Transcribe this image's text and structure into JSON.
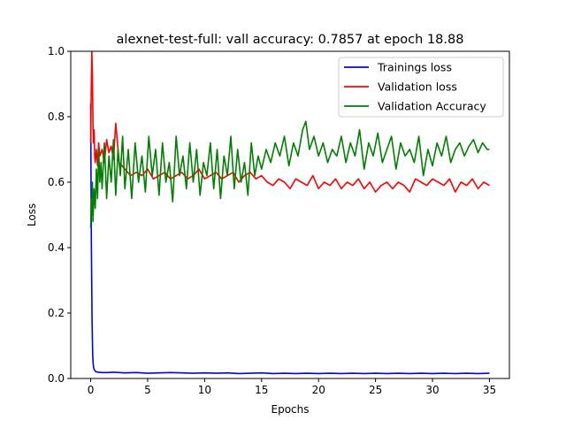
{
  "chart_data": {
    "type": "line",
    "title": "alexnet-test-full: vall accuracy: 0.7857 at epoch 18.88",
    "xlabel": "Epochs",
    "ylabel": "Loss",
    "xlim": [
      -1.75,
      36.75
    ],
    "ylim": [
      0.0,
      1.0
    ],
    "xticks": [
      0,
      5,
      10,
      15,
      20,
      25,
      30,
      35
    ],
    "yticks": [
      0.0,
      0.2,
      0.4,
      0.6,
      0.8,
      1.0
    ],
    "grid": false,
    "legend_position": "top-right",
    "series": [
      {
        "name": "Trainings loss",
        "color": "#0000ff",
        "x": [
          0.0,
          0.03,
          0.06,
          0.09,
          0.12,
          0.15,
          0.18,
          0.21,
          0.25,
          0.3,
          0.35,
          0.4,
          0.5,
          0.7,
          1,
          1.5,
          2,
          3,
          4,
          5,
          6,
          7,
          8,
          9,
          10,
          11,
          12,
          13,
          14,
          15,
          16,
          17,
          18,
          19,
          20,
          21,
          22,
          23,
          24,
          25,
          26,
          27,
          28,
          29,
          30,
          31,
          32,
          33,
          34,
          35
        ],
        "y": [
          0.84,
          0.6,
          0.42,
          0.3,
          0.18,
          0.12,
          0.07,
          0.05,
          0.035,
          0.028,
          0.025,
          0.022,
          0.02,
          0.019,
          0.018,
          0.018,
          0.019,
          0.017,
          0.018,
          0.016,
          0.017,
          0.018,
          0.017,
          0.016,
          0.017,
          0.016,
          0.017,
          0.015,
          0.016,
          0.017,
          0.015,
          0.016,
          0.015,
          0.016,
          0.015,
          0.016,
          0.015,
          0.016,
          0.015,
          0.016,
          0.015,
          0.016,
          0.015,
          0.016,
          0.015,
          0.016,
          0.015,
          0.016,
          0.015,
          0.016
        ]
      },
      {
        "name": "Validation loss",
        "color": "#ff0000",
        "x": [
          0.0,
          0.05,
          0.1,
          0.15,
          0.2,
          0.25,
          0.3,
          0.35,
          0.4,
          0.5,
          0.6,
          0.7,
          0.8,
          1.0,
          1.2,
          1.4,
          1.6,
          1.8,
          2.0,
          2.2,
          2.5,
          3,
          3.5,
          4,
          4.5,
          5,
          5.5,
          6,
          6.5,
          7,
          7.5,
          8,
          8.5,
          9,
          9.5,
          10,
          10.5,
          11,
          11.5,
          12,
          12.5,
          13,
          13.5,
          14,
          14.5,
          15,
          15.5,
          16,
          16.5,
          17,
          17.5,
          18,
          18.5,
          19,
          19.5,
          20,
          20.5,
          21,
          21.5,
          22,
          22.5,
          23,
          23.5,
          24,
          24.5,
          25,
          25.5,
          26,
          26.5,
          27,
          27.5,
          28,
          28.5,
          29,
          29.5,
          30,
          30.5,
          31,
          31.5,
          32,
          32.5,
          33,
          33.5,
          34,
          34.5,
          35
        ],
        "y": [
          0.72,
          0.88,
          1.0,
          0.93,
          0.78,
          0.72,
          0.76,
          0.68,
          0.66,
          0.7,
          0.65,
          0.72,
          0.68,
          0.7,
          0.66,
          0.73,
          0.69,
          0.71,
          0.67,
          0.78,
          0.66,
          0.64,
          0.62,
          0.63,
          0.62,
          0.64,
          0.61,
          0.62,
          0.63,
          0.61,
          0.62,
          0.63,
          0.61,
          0.62,
          0.64,
          0.61,
          0.62,
          0.63,
          0.61,
          0.62,
          0.63,
          0.6,
          0.62,
          0.63,
          0.61,
          0.62,
          0.6,
          0.59,
          0.61,
          0.6,
          0.58,
          0.61,
          0.6,
          0.59,
          0.62,
          0.58,
          0.6,
          0.59,
          0.61,
          0.58,
          0.6,
          0.59,
          0.61,
          0.58,
          0.6,
          0.57,
          0.59,
          0.6,
          0.58,
          0.6,
          0.59,
          0.57,
          0.61,
          0.6,
          0.59,
          0.61,
          0.6,
          0.59,
          0.61,
          0.57,
          0.6,
          0.59,
          0.61,
          0.58,
          0.6,
          0.59
        ]
      },
      {
        "name": "Validation Accuracy",
        "color": "#008000",
        "x": [
          0.0,
          0.05,
          0.1,
          0.15,
          0.2,
          0.3,
          0.4,
          0.5,
          0.6,
          0.7,
          0.8,
          0.9,
          1.0,
          1.2,
          1.4,
          1.6,
          1.8,
          2.0,
          2.2,
          2.4,
          2.6,
          2.8,
          3.0,
          3.3,
          3.6,
          3.9,
          4.2,
          4.5,
          4.8,
          5.1,
          5.4,
          5.7,
          6.0,
          6.3,
          6.6,
          6.9,
          7.2,
          7.5,
          7.8,
          8.1,
          8.4,
          8.7,
          9.0,
          9.3,
          9.6,
          9.9,
          10.2,
          10.5,
          10.8,
          11.1,
          11.4,
          11.7,
          12.0,
          12.3,
          12.6,
          12.9,
          13.2,
          13.5,
          13.8,
          14.1,
          14.4,
          14.7,
          15.0,
          15.4,
          15.8,
          16.2,
          16.6,
          17.0,
          17.4,
          17.8,
          18.2,
          18.6,
          18.88,
          19.2,
          19.6,
          20.0,
          20.4,
          20.8,
          21.2,
          21.6,
          22.0,
          22.4,
          22.8,
          23.2,
          23.6,
          24.0,
          24.4,
          24.8,
          25.2,
          25.6,
          26.0,
          26.4,
          26.8,
          27.2,
          27.6,
          28.0,
          28.4,
          28.8,
          29.2,
          29.6,
          30.0,
          30.4,
          30.8,
          31.2,
          31.6,
          32.0,
          32.4,
          32.8,
          33.2,
          33.6,
          34.0,
          34.4,
          34.8,
          35.0
        ],
        "y": [
          0.46,
          0.55,
          0.5,
          0.6,
          0.48,
          0.58,
          0.52,
          0.64,
          0.55,
          0.7,
          0.6,
          0.66,
          0.58,
          0.72,
          0.55,
          0.68,
          0.6,
          0.73,
          0.56,
          0.7,
          0.62,
          0.74,
          0.58,
          0.7,
          0.55,
          0.72,
          0.6,
          0.68,
          0.57,
          0.74,
          0.62,
          0.7,
          0.56,
          0.72,
          0.6,
          0.66,
          0.54,
          0.74,
          0.62,
          0.68,
          0.58,
          0.72,
          0.6,
          0.7,
          0.56,
          0.66,
          0.62,
          0.72,
          0.58,
          0.7,
          0.55,
          0.68,
          0.62,
          0.74,
          0.58,
          0.7,
          0.6,
          0.66,
          0.56,
          0.72,
          0.62,
          0.68,
          0.64,
          0.7,
          0.66,
          0.72,
          0.68,
          0.74,
          0.65,
          0.72,
          0.68,
          0.76,
          0.7857,
          0.7,
          0.74,
          0.68,
          0.72,
          0.66,
          0.7,
          0.68,
          0.74,
          0.66,
          0.72,
          0.68,
          0.76,
          0.64,
          0.72,
          0.68,
          0.75,
          0.66,
          0.7,
          0.74,
          0.64,
          0.72,
          0.68,
          0.7,
          0.66,
          0.74,
          0.62,
          0.7,
          0.65,
          0.72,
          0.68,
          0.74,
          0.66,
          0.7,
          0.72,
          0.68,
          0.71,
          0.73,
          0.69,
          0.72,
          0.7,
          0.7
        ]
      }
    ]
  }
}
